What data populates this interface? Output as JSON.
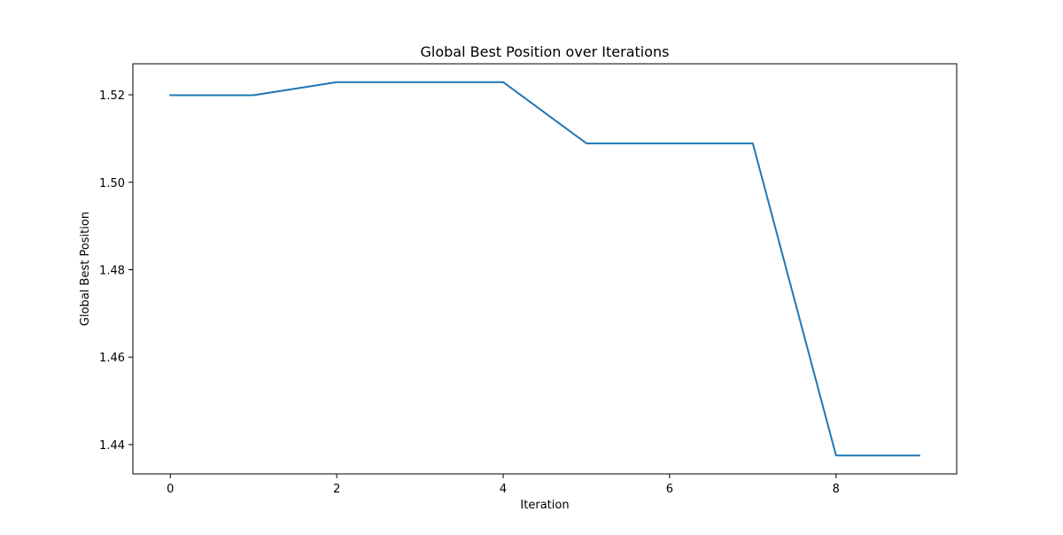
{
  "chart_data": {
    "type": "line",
    "title": "Global Best Position over Iterations",
    "xlabel": "Iteration",
    "ylabel": "Global Best Position",
    "x": [
      0,
      1,
      2,
      3,
      4,
      5,
      6,
      7,
      8,
      9
    ],
    "series": [
      {
        "values": [
          1.5199,
          1.5199,
          1.5229,
          1.5229,
          1.5229,
          1.5089,
          1.5089,
          1.5089,
          1.4375,
          1.4375
        ],
        "color": "#1f77b4"
      }
    ],
    "xlim": [
      -0.45,
      9.45
    ],
    "ylim": [
      1.4333,
      1.5271
    ],
    "xticks": [
      0,
      2,
      4,
      6,
      8
    ],
    "xtick_labels": [
      "0",
      "2",
      "4",
      "6",
      "8"
    ],
    "yticks": [
      1.44,
      1.46,
      1.48,
      1.5,
      1.52
    ],
    "ytick_labels": [
      "1.44",
      "1.46",
      "1.48",
      "1.50",
      "1.52"
    ],
    "grid": false,
    "legend": "none"
  }
}
